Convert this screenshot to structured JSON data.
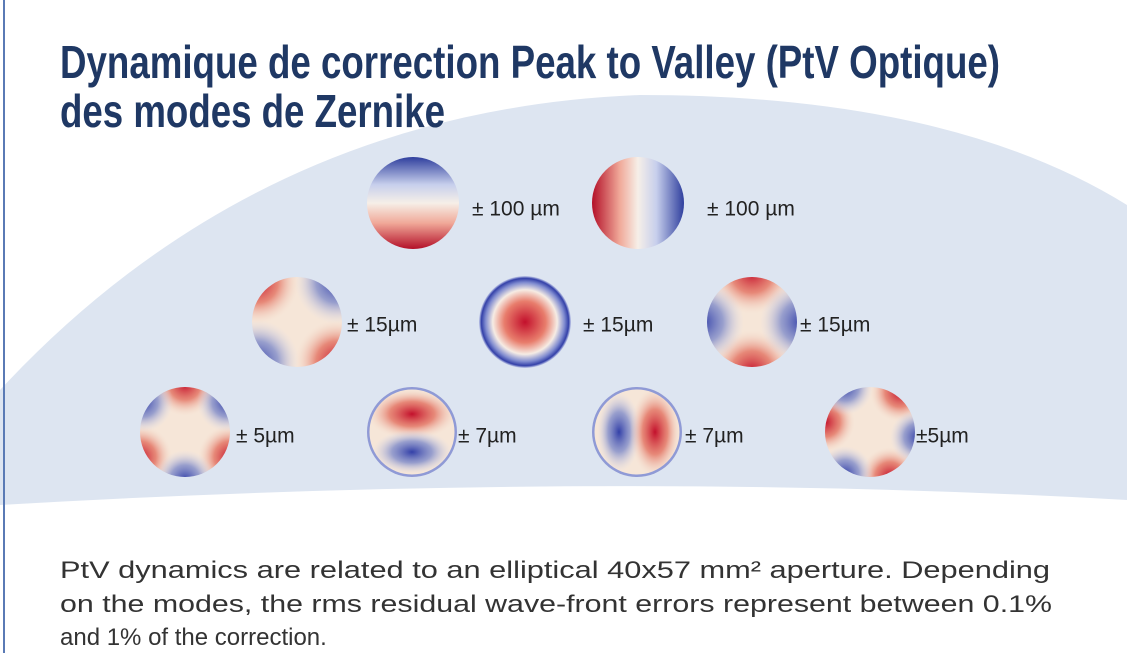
{
  "title": [
    "Dynamique de correction Peak to Valley (PtV Optique)",
    "des modes de Zernike"
  ],
  "modes": [
    {
      "label": "± 100 µm"
    },
    {
      "label": "± 100 µm"
    },
    {
      "label": "± 15µm"
    },
    {
      "label": "± 15µm"
    },
    {
      "label": "± 15µm"
    },
    {
      "label": "± 5µm"
    },
    {
      "label": "± 7µm"
    },
    {
      "label": "± 7µm"
    },
    {
      "label": "±5µm"
    }
  ],
  "caption": [
    "PtV dynamics are related to an elliptical 40x57 mm² aperture. Depending",
    "on the modes, the rms residual wave-front errors represent between 0.1%",
    "and 1% of the correction."
  ]
}
